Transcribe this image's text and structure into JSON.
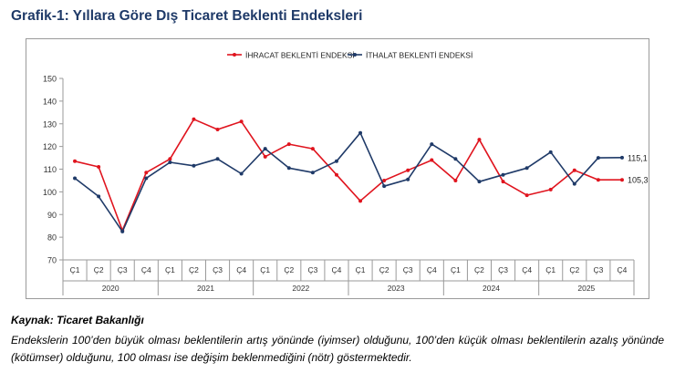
{
  "figure": {
    "title": "Grafik-1: Yıllara Göre Dış Ticaret Beklenti Endeksleri",
    "source": "Kaynak: Ticaret Bakanlığı",
    "note": "Endekslerin 100’den büyük olması beklentilerin artış yönünde (iyimser) olduğunu, 100’den küçük olması beklentilerin azalış yönünde (kötümser) olduğunu, 100 olması ise değişim beklenmediğini (nötr) göstermektedir."
  },
  "chart_data": {
    "type": "line",
    "title": "",
    "xlabel": "",
    "ylabel": "",
    "ylim": [
      70,
      150
    ],
    "yticks": [
      70,
      80,
      90,
      100,
      110,
      120,
      130,
      140,
      150
    ],
    "grid": false,
    "legend_position": "top",
    "quarters": [
      "Ç1",
      "Ç2",
      "Ç3",
      "Ç4"
    ],
    "years": [
      "2020",
      "2021",
      "2022",
      "2023",
      "2024",
      "2025"
    ],
    "categories": [
      "2020 Ç1",
      "2020 Ç2",
      "2020 Ç3",
      "2020 Ç4",
      "2021 Ç1",
      "2021 Ç2",
      "2021 Ç3",
      "2021 Ç4",
      "2022 Ç1",
      "2022 Ç2",
      "2022 Ç3",
      "2022 Ç4",
      "2023 Ç1",
      "2023 Ç2",
      "2023 Ç3",
      "2023 Ç4",
      "2024 Ç1",
      "2024 Ç2",
      "2024 Ç3",
      "2024 Ç4",
      "2025 Ç1",
      "2025 Ç2",
      "2025 Ç3",
      "2025 Ç4"
    ],
    "series": [
      {
        "name": "İHRACAT BEKLENTİ ENDEKSİ",
        "color": "#e0141e",
        "values": [
          113.5,
          111,
          83,
          108.5,
          114.5,
          132,
          127.5,
          131,
          115.5,
          121,
          119,
          107.5,
          96,
          105,
          109.5,
          114,
          105,
          123,
          104.5,
          98.5,
          101,
          109.5,
          105.3,
          105.3
        ],
        "end_label": "105,3"
      },
      {
        "name": "İTHALAT BEKLENTİ ENDEKSİ",
        "color": "#1f3a68",
        "values": [
          106,
          98,
          82.5,
          106,
          113,
          111.5,
          114.5,
          108,
          119,
          110.5,
          108.5,
          113.5,
          126,
          102.5,
          105.5,
          121,
          114.5,
          104.5,
          107.5,
          110.5,
          117.5,
          103.5,
          115,
          115.1
        ],
        "end_label": "115,1"
      }
    ]
  }
}
